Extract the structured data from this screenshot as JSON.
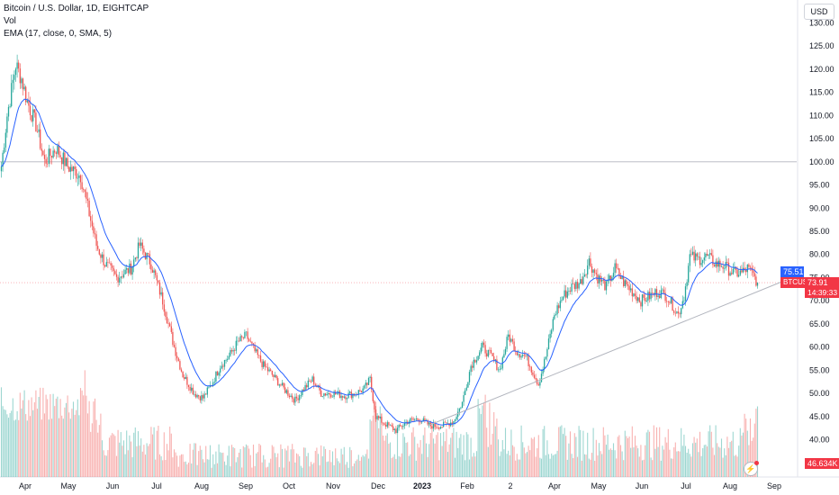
{
  "legend": {
    "symbol_line": "Bitcoin / U.S. Dollar, 1D, EIGHTCAP",
    "vol_label": "Vol",
    "ema_label": "EMA (17, close, 0, SMA, 5)"
  },
  "currency": "USD",
  "tags": {
    "ema_value": "75.51",
    "symbol": "BTCUSD",
    "last_price": "73.91",
    "countdown": "14:39:33",
    "volume": "46.634K"
  },
  "colors": {
    "up": "#26a69a",
    "down": "#ef5350",
    "ema": "#2962ff",
    "trendline": "#b2b5be",
    "last_price": "#f23645"
  },
  "chart_data": {
    "type": "candlestick",
    "title": "Bitcoin / U.S. Dollar, 1D, EIGHTCAP",
    "y_ticks": [
      "130.00",
      "125.00",
      "120.00",
      "115.00",
      "110.00",
      "105.00",
      "100.00",
      "95.00",
      "90.00",
      "85.00",
      "80.00",
      "75.00",
      "70.00",
      "65.00",
      "60.00",
      "55.00",
      "50.00",
      "45.00",
      "40.00"
    ],
    "x_ticks": [
      "Apr",
      "May",
      "Jun",
      "Jul",
      "Aug",
      "Sep",
      "Oct",
      "Nov",
      "Dec",
      "2023",
      "Feb",
      "2",
      "Apr",
      "May",
      "Jun",
      "Jul",
      "Aug",
      "Sep"
    ],
    "ylim": [
      36,
      130
    ],
    "horizontal_line": 100,
    "close_anchors": [
      [
        0,
        99.0
      ],
      [
        4,
        110.0
      ],
      [
        10,
        121.0
      ],
      [
        14,
        118.0
      ],
      [
        18,
        113.0
      ],
      [
        24,
        108.0
      ],
      [
        30,
        100.0
      ],
      [
        38,
        103.0
      ],
      [
        46,
        99.0
      ],
      [
        55,
        97.0
      ],
      [
        66,
        82.0
      ],
      [
        72,
        78.0
      ],
      [
        80,
        75.0
      ],
      [
        90,
        77.0
      ],
      [
        96,
        82.0
      ],
      [
        104,
        78.0
      ],
      [
        112,
        70.0
      ],
      [
        120,
        60.0
      ],
      [
        126,
        54.0
      ],
      [
        134,
        50.0
      ],
      [
        140,
        49.0
      ],
      [
        146,
        52.0
      ],
      [
        152,
        56.0
      ],
      [
        158,
        58.0
      ],
      [
        164,
        61.0
      ],
      [
        170,
        62.5
      ],
      [
        176,
        59.0
      ],
      [
        182,
        56.0
      ],
      [
        188,
        54.0
      ],
      [
        196,
        51.0
      ],
      [
        204,
        48.5
      ],
      [
        210,
        51.0
      ],
      [
        216,
        53.0
      ],
      [
        222,
        50.0
      ],
      [
        230,
        50.0
      ],
      [
        238,
        49.5
      ],
      [
        246,
        50.0
      ],
      [
        252,
        51.0
      ],
      [
        256,
        53.0
      ],
      [
        260,
        45.0
      ],
      [
        266,
        43.5
      ],
      [
        274,
        42.0
      ],
      [
        282,
        44.0
      ],
      [
        290,
        44.5
      ],
      [
        298,
        43.0
      ],
      [
        306,
        43.0
      ],
      [
        314,
        44.0
      ],
      [
        320,
        48.0
      ],
      [
        326,
        56.0
      ],
      [
        334,
        60.0
      ],
      [
        340,
        58.0
      ],
      [
        346,
        55.0
      ],
      [
        352,
        62.5
      ],
      [
        358,
        59.0
      ],
      [
        364,
        58.0
      ],
      [
        370,
        54.0
      ],
      [
        373,
        52.0
      ],
      [
        378,
        58.0
      ],
      [
        384,
        67.0
      ],
      [
        390,
        71.0
      ],
      [
        396,
        73.0
      ],
      [
        402,
        74.0
      ],
      [
        408,
        78.5
      ],
      [
        414,
        75.0
      ],
      [
        420,
        73.0
      ],
      [
        426,
        77.0
      ],
      [
        432,
        74.0
      ],
      [
        438,
        72.0
      ],
      [
        444,
        70.0
      ],
      [
        450,
        71.0
      ],
      [
        456,
        72.0
      ],
      [
        462,
        71.0
      ],
      [
        466,
        69.0
      ],
      [
        470,
        67.0
      ],
      [
        474,
        71.0
      ],
      [
        478,
        79.5
      ],
      [
        484,
        79.0
      ],
      [
        490,
        79.5
      ],
      [
        496,
        78.0
      ],
      [
        502,
        77.5
      ],
      [
        508,
        76.0
      ],
      [
        514,
        76.0
      ],
      [
        518,
        77.0
      ],
      [
        522,
        75.5
      ],
      [
        525,
        73.91
      ]
    ],
    "ema_period": 17,
    "trendline": [
      [
        296,
        43.0
      ],
      [
        545,
        74.5
      ]
    ],
    "last_price": 73.91,
    "ema_last": 75.51,
    "volume_last": "46.634K"
  }
}
